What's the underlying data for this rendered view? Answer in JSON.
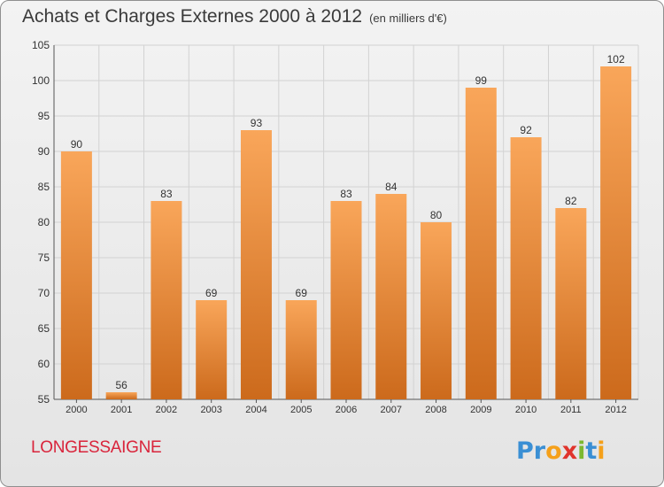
{
  "title": "Achats et Charges Externes 2000 à 2012",
  "subtitle": "(en milliers d'€)",
  "commune": "LONGESSAIGNE",
  "logo_text": "Proxiti",
  "colors": {
    "bar_top": "#f9a65a",
    "bar_bottom": "#cc6a1c",
    "commune_text": "#d9243b",
    "grid": "#d2d2d2"
  },
  "chart_data": {
    "type": "bar",
    "title": "Achats et Charges Externes 2000 à 2012",
    "subtitle": "(en milliers d'€)",
    "categories": [
      "2000",
      "2001",
      "2002",
      "2003",
      "2004",
      "2005",
      "2006",
      "2007",
      "2008",
      "2009",
      "2010",
      "2011",
      "2012"
    ],
    "values": [
      90,
      56,
      83,
      69,
      93,
      69,
      83,
      84,
      80,
      99,
      92,
      82,
      102
    ],
    "data_labels": [
      "90",
      "56",
      "83",
      "69",
      "93",
      "69",
      "83",
      "84",
      "80",
      "99",
      "92",
      "82",
      "102"
    ],
    "ylim": [
      55,
      105
    ],
    "yticks": [
      55,
      60,
      65,
      70,
      75,
      80,
      85,
      90,
      95,
      100,
      105
    ],
    "xlabel": "",
    "ylabel": "",
    "grid": true,
    "legend": "none"
  }
}
